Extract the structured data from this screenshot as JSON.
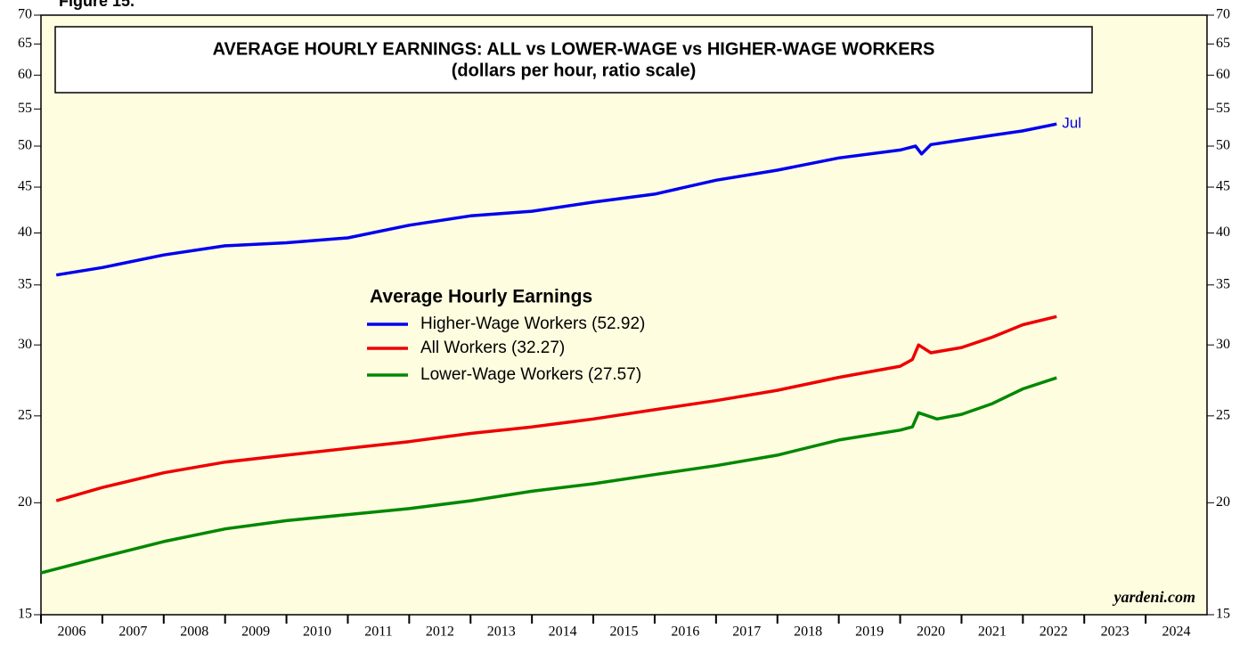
{
  "chart_data": {
    "type": "line",
    "figure_label": "Figure 15.",
    "title": "AVERAGE HOURLY EARNINGS: ALL vs LOWER-WAGE vs HIGHER-WAGE WORKERS",
    "subtitle": "(dollars per hour, ratio scale)",
    "legend_title": "Average Hourly Earnings",
    "annotation": "Jul",
    "source": "yardeni.com",
    "log_scale": true,
    "xlim": [
      2006,
      2025
    ],
    "xticks": [
      2006,
      2007,
      2008,
      2009,
      2010,
      2011,
      2012,
      2013,
      2014,
      2015,
      2016,
      2017,
      2018,
      2019,
      2020,
      2021,
      2022,
      2023,
      2024
    ],
    "ylim": [
      15,
      70
    ],
    "yticks": [
      15,
      20,
      25,
      30,
      35,
      40,
      45,
      50,
      55,
      60,
      65,
      70
    ],
    "series": [
      {
        "name": "Higher-Wage Workers (52.92)",
        "color": "#0000ee",
        "x": [
          2006.25,
          2007,
          2008,
          2009,
          2010,
          2011,
          2012,
          2013,
          2014,
          2015,
          2016,
          2017,
          2018,
          2019,
          2020,
          2020.25,
          2020.35,
          2020.5,
          2021,
          2021.5,
          2022,
          2022.55
        ],
        "values": [
          35.9,
          36.6,
          37.8,
          38.7,
          39.0,
          39.5,
          40.8,
          41.8,
          42.3,
          43.3,
          44.2,
          45.8,
          47.0,
          48.5,
          49.5,
          50.0,
          49.0,
          50.2,
          50.8,
          51.4,
          52.0,
          52.92
        ]
      },
      {
        "name": "All Workers (32.27)",
        "color": "#ee0000",
        "x": [
          2006.25,
          2007,
          2008,
          2009,
          2010,
          2011,
          2012,
          2013,
          2014,
          2015,
          2016,
          2017,
          2018,
          2019,
          2020,
          2020.2,
          2020.3,
          2020.5,
          2021,
          2021.5,
          2022,
          2022.55
        ],
        "values": [
          20.1,
          20.8,
          21.6,
          22.2,
          22.6,
          23.0,
          23.4,
          23.9,
          24.3,
          24.8,
          25.4,
          26.0,
          26.7,
          27.6,
          28.4,
          28.9,
          30.0,
          29.4,
          29.8,
          30.6,
          31.6,
          32.27
        ]
      },
      {
        "name": "Lower-Wage Workers (27.57)",
        "color": "#008800",
        "x": [
          2006,
          2007,
          2008,
          2009,
          2010,
          2011,
          2012,
          2013,
          2014,
          2015,
          2016,
          2017,
          2018,
          2019,
          2020,
          2020.2,
          2020.3,
          2020.6,
          2021,
          2021.5,
          2022,
          2022.55
        ],
        "values": [
          16.7,
          17.4,
          18.1,
          18.7,
          19.1,
          19.4,
          19.7,
          20.1,
          20.6,
          21.0,
          21.5,
          22.0,
          22.6,
          23.5,
          24.1,
          24.3,
          25.2,
          24.8,
          25.1,
          25.8,
          26.8,
          27.57
        ]
      }
    ]
  }
}
